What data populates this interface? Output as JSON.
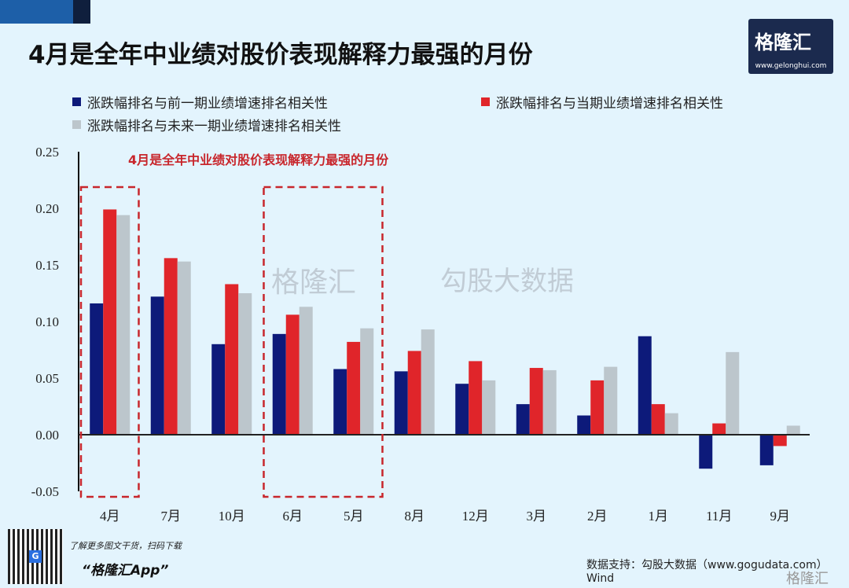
{
  "header": {
    "title": "4月是全年中业绩对股价表现解释力最强的月份",
    "logo_text": "格隆汇",
    "logo_url": "www.gelonghui.com"
  },
  "watermark": {
    "left": "格隆汇",
    "left_url": "www.gelonghui.com",
    "right": "勾股大数据",
    "right_url": "www.gogudata.com"
  },
  "footer": {
    "scan_text": "了解更多图文干货，扫码下载",
    "app_name": "“格隆汇App”",
    "source": "数据支持：勾股大数据（www.gogudata.com）Wind",
    "corner_logo": "格隆汇"
  },
  "chart_data": {
    "type": "bar",
    "annotation": "4月是全年中业绩对股价表现解释力最强的月份",
    "highlighted_categories": [
      "4月",
      "6月",
      "5月"
    ],
    "categories": [
      "4月",
      "7月",
      "10月",
      "6月",
      "5月",
      "8月",
      "12月",
      "3月",
      "2月",
      "1月",
      "11月",
      "9月"
    ],
    "ylim": [
      -0.05,
      0.25
    ],
    "yticks": [
      "0.25",
      "0.20",
      "0.15",
      "0.10",
      "0.05",
      "0.00",
      "-0.05"
    ],
    "legend_position": "top",
    "grid": false,
    "series": [
      {
        "name": "涨跌幅排名与前一期业绩增速排名相关性",
        "color": "#0d1a7a",
        "values": [
          0.116,
          0.122,
          0.08,
          0.089,
          0.058,
          0.056,
          0.045,
          0.027,
          0.017,
          0.087,
          -0.03,
          -0.027
        ]
      },
      {
        "name": "涨跌幅排名与当期业绩增速排名相关性",
        "color": "#e0252a",
        "values": [
          0.199,
          0.156,
          0.133,
          0.106,
          0.082,
          0.074,
          0.065,
          0.059,
          0.048,
          0.027,
          0.01,
          -0.01
        ]
      },
      {
        "name": "涨跌幅排名与未来一期业绩增速排名相关性",
        "color": "#bcc6cc",
        "values": [
          0.194,
          0.153,
          0.125,
          0.113,
          0.094,
          0.093,
          0.048,
          0.057,
          0.06,
          0.019,
          0.073,
          0.008
        ]
      }
    ]
  }
}
